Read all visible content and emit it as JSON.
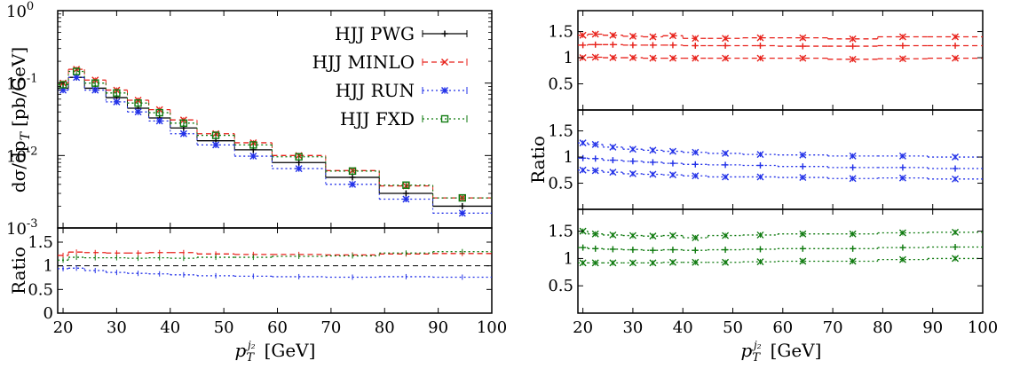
{
  "chart_data": [
    {
      "id": "left_main",
      "type": "line",
      "y_label": "dσ/dp",
      "y_label_sub": "T",
      "y_label_unit": "[pb/GeV]",
      "y_scale": "log",
      "xlim": [
        19,
        100
      ],
      "ylim": [
        0.001,
        1
      ],
      "y_ticks": [
        0.001,
        0.01,
        0.1,
        1
      ],
      "y_tick_labels": [
        {
          "base": "10",
          "exp": "-3"
        },
        {
          "base": "10",
          "exp": "-2"
        },
        {
          "base": "10",
          "exp": "-1"
        },
        {
          "base": "10",
          "exp": "0"
        }
      ],
      "legend_position": "top-right",
      "bins": [
        [
          19,
          21
        ],
        [
          21,
          24
        ],
        [
          24,
          28
        ],
        [
          28,
          32
        ],
        [
          32,
          36
        ],
        [
          36,
          40
        ],
        [
          40,
          45
        ],
        [
          45,
          52
        ],
        [
          52,
          59
        ],
        [
          59,
          69
        ],
        [
          69,
          79
        ],
        [
          79,
          89
        ],
        [
          89,
          100
        ]
      ],
      "series": [
        {
          "name": "HJJ PWG",
          "color": "#000000",
          "marker": "plus",
          "style": "solid",
          "values": [
            0.085,
            0.12,
            0.085,
            0.063,
            0.045,
            0.033,
            0.024,
            0.016,
            0.012,
            0.008,
            0.005,
            0.003,
            0.002
          ]
        },
        {
          "name": "HJJ MINLO",
          "color": "#e8221b",
          "marker": "x",
          "style": "dashed",
          "values": [
            0.1,
            0.155,
            0.11,
            0.08,
            0.058,
            0.043,
            0.031,
            0.02,
            0.015,
            0.01,
            0.0062,
            0.0038,
            0.0026
          ]
        },
        {
          "name": "HJJ RUN",
          "color": "#2231e8",
          "marker": "star",
          "style": "dotted",
          "values": [
            0.08,
            0.12,
            0.08,
            0.055,
            0.04,
            0.03,
            0.02,
            0.014,
            0.0098,
            0.0066,
            0.004,
            0.0025,
            0.0016
          ]
        },
        {
          "name": "HJJ FXD",
          "color": "#0f7a0f",
          "marker": "square",
          "style": "dotted",
          "values": [
            0.095,
            0.145,
            0.1,
            0.073,
            0.053,
            0.039,
            0.028,
            0.019,
            0.014,
            0.0096,
            0.0061,
            0.0039,
            0.0026
          ]
        }
      ]
    },
    {
      "id": "left_ratio",
      "type": "line",
      "y_label": "Ratio",
      "x_label": "p",
      "x_label_sub": "T",
      "x_label_sup": "j₂",
      "x_label_unit": "[GeV]",
      "xlim": [
        19,
        100
      ],
      "ylim": [
        0,
        1.8
      ],
      "y_ticks": [
        0,
        0.5,
        1,
        1.5
      ],
      "y_tick_labels": [
        "0",
        "0.5",
        "1",
        "1.5"
      ],
      "x_ticks": [
        20,
        30,
        40,
        50,
        60,
        70,
        80,
        90,
        100
      ],
      "x_tick_labels": [
        "20",
        "30",
        "40",
        "50",
        "60",
        "70",
        "80",
        "90",
        "100"
      ],
      "reference": 1,
      "series": [
        {
          "name": "HJJ MINLO",
          "color": "#e8221b",
          "style": "dashed",
          "values": [
            1.22,
            1.29,
            1.28,
            1.27,
            1.27,
            1.28,
            1.28,
            1.25,
            1.24,
            1.24,
            1.23,
            1.25,
            1.26
          ]
        },
        {
          "name": "HJJ FXD",
          "color": "#0f7a0f",
          "style": "dotted",
          "values": [
            1.12,
            1.18,
            1.17,
            1.17,
            1.16,
            1.17,
            1.16,
            1.18,
            1.18,
            1.2,
            1.21,
            1.27,
            1.3
          ]
        },
        {
          "name": "HJJ RUN",
          "color": "#2231e8",
          "style": "dotted",
          "values": [
            0.94,
            0.95,
            0.9,
            0.86,
            0.84,
            0.83,
            0.81,
            0.79,
            0.78,
            0.77,
            0.76,
            0.77,
            0.76
          ]
        }
      ]
    },
    {
      "id": "right_top",
      "type": "line",
      "xlim": [
        19,
        100
      ],
      "ylim": [
        0,
        1.9
      ],
      "y_ticks": [
        0.5,
        1,
        1.5
      ],
      "y_tick_labels": [
        "0.5",
        "1",
        "1.5"
      ],
      "color": "#e8221b",
      "series": [
        {
          "style": "dashed",
          "values": [
            1.43,
            1.45,
            1.43,
            1.41,
            1.4,
            1.42,
            1.37,
            1.37,
            1.38,
            1.38,
            1.36,
            1.4,
            1.4
          ]
        },
        {
          "style": "dashed",
          "values": [
            1.24,
            1.25,
            1.25,
            1.24,
            1.24,
            1.24,
            1.23,
            1.23,
            1.23,
            1.22,
            1.22,
            1.23,
            1.23
          ]
        },
        {
          "style": "dashed",
          "values": [
            1.0,
            1.01,
            1.0,
            1.0,
            0.99,
            0.99,
            0.99,
            0.99,
            0.99,
            0.99,
            0.97,
            0.98,
            0.99
          ]
        }
      ]
    },
    {
      "id": "right_mid",
      "type": "line",
      "y_label": "Ratio",
      "xlim": [
        19,
        100
      ],
      "ylim": [
        0,
        1.9
      ],
      "y_ticks": [
        0.5,
        1,
        1.5
      ],
      "y_tick_labels": [
        "0.5",
        "1",
        "1.5"
      ],
      "color": "#2231e8",
      "series": [
        {
          "style": "dotted",
          "values": [
            1.27,
            1.24,
            1.19,
            1.15,
            1.13,
            1.11,
            1.09,
            1.07,
            1.05,
            1.04,
            1.02,
            1.02,
            1.0
          ]
        },
        {
          "style": "dotted",
          "values": [
            0.98,
            0.97,
            0.94,
            0.92,
            0.9,
            0.88,
            0.86,
            0.85,
            0.84,
            0.82,
            0.8,
            0.8,
            0.78
          ]
        },
        {
          "style": "dotted",
          "values": [
            0.75,
            0.74,
            0.71,
            0.68,
            0.67,
            0.66,
            0.64,
            0.62,
            0.62,
            0.61,
            0.59,
            0.6,
            0.58
          ]
        }
      ]
    },
    {
      "id": "right_bottom",
      "type": "line",
      "x_label": "p",
      "x_label_sub": "T",
      "x_label_sup": "j₂",
      "x_label_unit": "[GeV]",
      "xlim": [
        19,
        100
      ],
      "ylim": [
        0,
        1.9
      ],
      "y_ticks": [
        0.5,
        1,
        1.5
      ],
      "y_tick_labels": [
        "0.5",
        "1",
        "1.5"
      ],
      "x_ticks": [
        20,
        30,
        40,
        50,
        60,
        70,
        80,
        90,
        100
      ],
      "x_tick_labels": [
        "20",
        "30",
        "40",
        "50",
        "60",
        "70",
        "80",
        "90",
        "100"
      ],
      "color": "#0f7a0f",
      "series": [
        {
          "style": "dotted",
          "values": [
            1.5,
            1.45,
            1.43,
            1.42,
            1.41,
            1.42,
            1.38,
            1.42,
            1.43,
            1.45,
            1.45,
            1.47,
            1.48
          ]
        },
        {
          "style": "dotted",
          "values": [
            1.2,
            1.18,
            1.17,
            1.16,
            1.15,
            1.16,
            1.15,
            1.16,
            1.17,
            1.18,
            1.18,
            1.2,
            1.21
          ]
        },
        {
          "style": "dotted",
          "values": [
            0.92,
            0.92,
            0.92,
            0.92,
            0.92,
            0.93,
            0.93,
            0.93,
            0.94,
            0.95,
            0.95,
            0.98,
            1.0
          ]
        }
      ]
    }
  ]
}
